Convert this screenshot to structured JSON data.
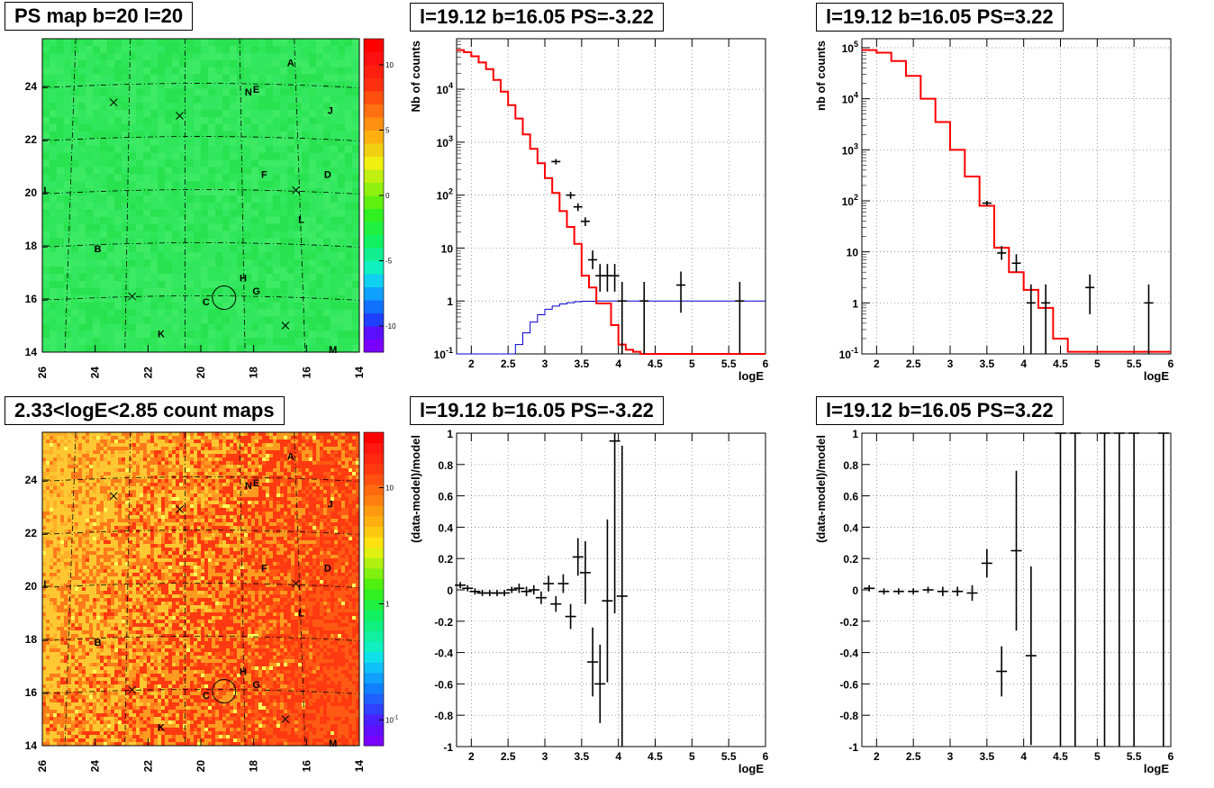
{
  "panels": {
    "map_ps": {
      "title": "PS map b=20 l=20"
    },
    "map_counts": {
      "title": "2.33<logE<2.85 count maps"
    },
    "spec_neg": {
      "title": "l=19.12 b=16.05 PS=-3.22"
    },
    "spec_pos": {
      "title": "l=19.12 b=16.05 PS=3.22"
    },
    "res_neg": {
      "title": "l=19.12 b=16.05 PS=-3.22"
    },
    "res_pos": {
      "title": "l=19.12 b=16.05 PS=3.22"
    }
  },
  "chart_data": [
    {
      "id": "map_ps",
      "type": "heatmap",
      "title": "PS map b=20 l=20",
      "xlim": [
        26,
        14
      ],
      "ylim": [
        14,
        25.8
      ],
      "xticks": [
        "26",
        "24",
        "22",
        "20",
        "18",
        "16",
        "14"
      ],
      "yticks": [
        "14",
        "16",
        "18",
        "20",
        "22",
        "24"
      ],
      "colorbar": {
        "range": [
          -12,
          12
        ],
        "labels": [
          "-10",
          "-5",
          "0",
          "5",
          "10"
        ],
        "values": [
          -10,
          -5,
          0,
          5,
          10
        ]
      },
      "fill_color": "#2fe85a",
      "sources": [
        {
          "label": "A",
          "l": 16.6,
          "b": 24.9
        },
        {
          "label": "N",
          "l": 18.2,
          "b": 23.8
        },
        {
          "label": "E",
          "l": 17.9,
          "b": 23.9
        },
        {
          "label": "J",
          "l": 15.1,
          "b": 23.1
        },
        {
          "label": "F",
          "l": 17.6,
          "b": 20.7
        },
        {
          "label": "D",
          "l": 15.2,
          "b": 20.7
        },
        {
          "label": "I",
          "l": 25.9,
          "b": 20.1
        },
        {
          "label": "L",
          "l": 16.2,
          "b": 19.0
        },
        {
          "label": "B",
          "l": 23.9,
          "b": 17.9
        },
        {
          "label": "H",
          "l": 18.4,
          "b": 16.8
        },
        {
          "label": "G",
          "l": 17.9,
          "b": 16.3
        },
        {
          "label": "C",
          "l": 19.8,
          "b": 15.9
        },
        {
          "label": "K",
          "l": 21.5,
          "b": 14.7
        },
        {
          "label": "M",
          "l": 15.0,
          "b": 14.1
        }
      ],
      "crosses": [
        {
          "l": 23.3,
          "b": 23.4
        },
        {
          "l": 20.8,
          "b": 22.9
        },
        {
          "l": 16.4,
          "b": 20.1
        },
        {
          "l": 22.6,
          "b": 16.1
        },
        {
          "l": 16.8,
          "b": 15.0
        }
      ],
      "circle": {
        "l": 19.12,
        "b": 16.05
      }
    },
    {
      "id": "map_counts",
      "type": "heatmap",
      "title": "2.33<logE<2.85 count maps",
      "xlim": [
        26,
        14
      ],
      "ylim": [
        14,
        25.8
      ],
      "xticks": [
        "26",
        "24",
        "22",
        "20",
        "18",
        "16",
        "14"
      ],
      "yticks": [
        "14",
        "16",
        "18",
        "20",
        "22",
        "24"
      ],
      "colorbar": {
        "scale": "log",
        "labels": [
          "10^-1",
          "1",
          "10"
        ],
        "values": [
          0.1,
          1,
          10
        ],
        "range": [
          0.06,
          30
        ]
      },
      "sources_same_as": "map_ps"
    },
    {
      "id": "spec_neg",
      "type": "line",
      "title": "l=19.12 b=16.05 PS=-3.22",
      "xlabel": "logE",
      "ylabel": "Nb of counts",
      "yscale": "log",
      "xlim": [
        1.8,
        6.0
      ],
      "ylim": [
        0.1,
        90000
      ],
      "xticks": [
        "2",
        "2.5",
        "3",
        "3.5",
        "4",
        "4.5",
        "5",
        "5.5",
        "6"
      ],
      "yticks": [
        "10^-1",
        "1",
        "10",
        "10^2",
        "10^3",
        "10^4"
      ],
      "series": [
        {
          "color": "#ff0000",
          "step_edges": [
            1.8,
            1.9,
            2.0,
            2.1,
            2.2,
            2.3,
            2.4,
            2.5,
            2.6,
            2.7,
            2.8,
            2.9,
            3.0,
            3.1,
            3.2,
            3.3,
            3.4,
            3.5,
            3.6,
            3.7,
            3.8,
            3.9,
            4.0,
            4.1,
            4.2,
            4.3,
            4.4,
            6.0
          ],
          "values": [
            55000,
            50000,
            42000,
            32000,
            24000,
            15000,
            9000,
            5000,
            2800,
            1400,
            750,
            400,
            210,
            110,
            50,
            25,
            12,
            3,
            1.8,
            0.9,
            0.9,
            0.35,
            0.15,
            0.12,
            0.11,
            0.1,
            0.1
          ]
        },
        {
          "color": "#0000cc",
          "step_edges": [
            1.8,
            2.5,
            2.6,
            2.7,
            2.8,
            2.9,
            3.0,
            3.1,
            3.2,
            3.3,
            3.4,
            3.5,
            3.7,
            6.0
          ],
          "values": [
            0.09,
            0.1,
            0.15,
            0.25,
            0.4,
            0.55,
            0.7,
            0.8,
            0.88,
            0.93,
            0.97,
            0.99,
            1.0
          ]
        }
      ],
      "points": [
        {
          "x": 3.15,
          "y": 430,
          "lo": 380,
          "hi": 480
        },
        {
          "x": 3.35,
          "y": 100,
          "lo": 85,
          "hi": 115
        },
        {
          "x": 3.45,
          "y": 60,
          "lo": 50,
          "hi": 70
        },
        {
          "x": 3.55,
          "y": 32,
          "lo": 26,
          "hi": 38
        },
        {
          "x": 3.65,
          "y": 6,
          "lo": 4,
          "hi": 9
        },
        {
          "x": 3.75,
          "y": 3,
          "lo": 1.5,
          "hi": 5
        },
        {
          "x": 3.85,
          "y": 3,
          "lo": 1.5,
          "hi": 5
        },
        {
          "x": 3.95,
          "y": 3,
          "lo": 1.5,
          "hi": 5
        },
        {
          "x": 4.05,
          "y": 1,
          "lo": 0.1,
          "hi": 2.3
        },
        {
          "x": 4.35,
          "y": 1,
          "lo": 0.1,
          "hi": 2.3
        },
        {
          "x": 4.85,
          "y": 2,
          "lo": 0.6,
          "hi": 3.6
        },
        {
          "x": 5.65,
          "y": 1,
          "lo": 0.1,
          "hi": 2.3
        }
      ]
    },
    {
      "id": "spec_pos",
      "type": "line",
      "title": "l=19.12 b=16.05 PS=3.22",
      "xlabel": "logE",
      "ylabel": "nb of counts",
      "yscale": "log",
      "xlim": [
        1.8,
        6.0
      ],
      "ylim": [
        0.1,
        150000
      ],
      "xticks": [
        "2",
        "2.5",
        "3",
        "3.5",
        "4",
        "4.5",
        "5",
        "5.5",
        "6"
      ],
      "yticks": [
        "10^-1",
        "1",
        "10",
        "10^2",
        "10^3",
        "10^4",
        "10^5"
      ],
      "series": [
        {
          "color": "#ff0000",
          "step_edges": [
            1.8,
            2.0,
            2.2,
            2.4,
            2.6,
            2.8,
            3.0,
            3.2,
            3.4,
            3.6,
            3.8,
            4.0,
            4.2,
            4.4,
            4.6,
            6.0
          ],
          "values": [
            90000,
            80000,
            55000,
            28000,
            10000,
            3500,
            1000,
            300,
            80,
            12,
            4,
            1.8,
            0.8,
            0.2,
            0.11
          ]
        }
      ],
      "points": [
        {
          "x": 3.5,
          "y": 90,
          "lo": 80,
          "hi": 100
        },
        {
          "x": 3.7,
          "y": 9.5,
          "lo": 7,
          "hi": 13
        },
        {
          "x": 3.9,
          "y": 6,
          "lo": 4,
          "hi": 9
        },
        {
          "x": 4.1,
          "y": 1,
          "lo": 0.1,
          "hi": 2.3
        },
        {
          "x": 4.3,
          "y": 1,
          "lo": 0.1,
          "hi": 2.3
        },
        {
          "x": 4.9,
          "y": 2,
          "lo": 0.6,
          "hi": 3.6
        },
        {
          "x": 5.7,
          "y": 1,
          "lo": 0.1,
          "hi": 2.3
        }
      ]
    },
    {
      "id": "res_neg",
      "type": "scatter",
      "title": "l=19.12 b=16.05 PS=-3.22",
      "xlabel": "logE",
      "ylabel": "(data-model)/model",
      "xlim": [
        1.8,
        6.0
      ],
      "ylim": [
        -1,
        1
      ],
      "xticks": [
        "2",
        "2.5",
        "3",
        "3.5",
        "4",
        "4.5",
        "5",
        "5.5",
        "6"
      ],
      "yticks": [
        "-1",
        "-0.8",
        "-0.6",
        "-0.4",
        "-0.2",
        "0",
        "0.2",
        "0.4",
        "0.6",
        "0.8",
        "1"
      ],
      "points": [
        {
          "x": 1.85,
          "y": 0.03,
          "err": 0.02
        },
        {
          "x": 1.95,
          "y": 0.01,
          "err": 0.02
        },
        {
          "x": 2.05,
          "y": -0.01,
          "err": 0.02
        },
        {
          "x": 2.15,
          "y": -0.02,
          "err": 0.02
        },
        {
          "x": 2.25,
          "y": -0.02,
          "err": 0.02
        },
        {
          "x": 2.35,
          "y": -0.02,
          "err": 0.02
        },
        {
          "x": 2.45,
          "y": -0.02,
          "err": 0.02
        },
        {
          "x": 2.55,
          "y": 0.0,
          "err": 0.02
        },
        {
          "x": 2.65,
          "y": 0.01,
          "err": 0.03
        },
        {
          "x": 2.75,
          "y": -0.01,
          "err": 0.03
        },
        {
          "x": 2.85,
          "y": 0.0,
          "err": 0.03
        },
        {
          "x": 2.95,
          "y": -0.05,
          "err": 0.04
        },
        {
          "x": 3.05,
          "y": 0.04,
          "err": 0.05
        },
        {
          "x": 3.15,
          "y": -0.09,
          "err": 0.05
        },
        {
          "x": 3.25,
          "y": 0.04,
          "err": 0.06
        },
        {
          "x": 3.35,
          "y": -0.17,
          "err": 0.08
        },
        {
          "x": 3.45,
          "y": 0.21,
          "err": 0.12
        },
        {
          "x": 3.55,
          "y": 0.11,
          "err": 0.2
        },
        {
          "x": 3.65,
          "y": -0.46,
          "err": 0.22
        },
        {
          "x": 3.75,
          "y": -0.6,
          "err": 0.25
        },
        {
          "x": 3.85,
          "y": -0.07,
          "err": 0.52
        },
        {
          "x": 3.95,
          "y": 0.95,
          "err": 1.1
        },
        {
          "x": 4.05,
          "y": -0.04,
          "err": 0.96
        }
      ]
    },
    {
      "id": "res_pos",
      "type": "scatter",
      "title": "l=19.12 b=16.05 PS=3.22",
      "xlabel": "logE",
      "ylabel": "(data-model)/model",
      "xlim": [
        1.8,
        6.0
      ],
      "ylim": [
        -1,
        1
      ],
      "xticks": [
        "2",
        "2.5",
        "3",
        "3.5",
        "4",
        "4.5",
        "5",
        "5.5",
        "6"
      ],
      "yticks": [
        "-1",
        "-0.8",
        "-0.6",
        "-0.4",
        "-0.2",
        "0",
        "0.2",
        "0.4",
        "0.6",
        "0.8",
        "1"
      ],
      "points": [
        {
          "x": 1.9,
          "y": 0.01,
          "err": 0.02
        },
        {
          "x": 2.1,
          "y": -0.01,
          "err": 0.02
        },
        {
          "x": 2.3,
          "y": -0.01,
          "err": 0.02
        },
        {
          "x": 2.5,
          "y": -0.01,
          "err": 0.02
        },
        {
          "x": 2.7,
          "y": 0.0,
          "err": 0.02
        },
        {
          "x": 2.9,
          "y": -0.01,
          "err": 0.03
        },
        {
          "x": 3.1,
          "y": -0.01,
          "err": 0.03
        },
        {
          "x": 3.3,
          "y": -0.02,
          "err": 0.05
        },
        {
          "x": 3.5,
          "y": 0.17,
          "err": 0.09
        },
        {
          "x": 3.7,
          "y": -0.52,
          "err": 0.16
        },
        {
          "x": 3.9,
          "y": 0.25,
          "err": 0.51
        },
        {
          "x": 4.1,
          "y": -0.42,
          "err": 0.57
        },
        {
          "x": 4.5,
          "y": 1.0,
          "err": 2.5
        },
        {
          "x": 4.7,
          "y": 1.0,
          "err": 2.5
        },
        {
          "x": 5.1,
          "y": 1.0,
          "err": 2.5
        },
        {
          "x": 5.3,
          "y": 1.0,
          "err": 2.5
        },
        {
          "x": 5.5,
          "y": 1.0,
          "err": 2.5
        },
        {
          "x": 5.9,
          "y": 1.0,
          "err": 2.5
        }
      ]
    }
  ]
}
